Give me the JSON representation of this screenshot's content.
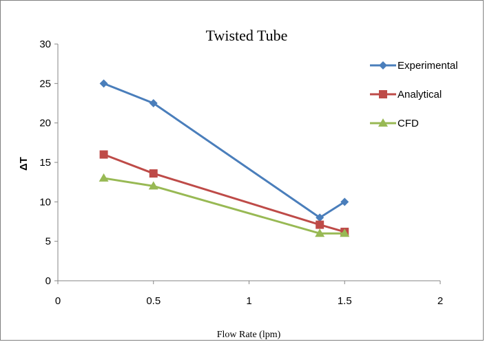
{
  "chart_data": {
    "type": "line",
    "title": "Twisted Tube",
    "xlabel": "Flow Rate (lpm)",
    "ylabel": "ΔT",
    "xlim": [
      0,
      2
    ],
    "ylim": [
      0,
      30
    ],
    "xticks": [
      0,
      0.5,
      1,
      1.5,
      2
    ],
    "yticks": [
      0,
      5,
      10,
      15,
      20,
      25,
      30
    ],
    "xtick_labels": [
      "0",
      "0.5",
      "1",
      "1.5",
      "2"
    ],
    "ytick_labels": [
      "0",
      "5",
      "10",
      "15",
      "20",
      "25",
      "30"
    ],
    "grid": false,
    "legend_position": "right",
    "series": [
      {
        "name": "Experimental",
        "color": "#4a7ebb",
        "marker": "diamond",
        "x": [
          0.24,
          0.5,
          1.37,
          1.5
        ],
        "y": [
          25,
          22.5,
          8,
          10
        ]
      },
      {
        "name": "Analytical",
        "color": "#be4b48",
        "marker": "square",
        "x": [
          0.24,
          0.5,
          1.37,
          1.5
        ],
        "y": [
          16,
          13.6,
          7.1,
          6.2
        ]
      },
      {
        "name": "CFD",
        "color": "#98b954",
        "marker": "triangle",
        "x": [
          0.24,
          0.5,
          1.37,
          1.5
        ],
        "y": [
          13,
          12,
          6,
          6
        ]
      }
    ]
  }
}
